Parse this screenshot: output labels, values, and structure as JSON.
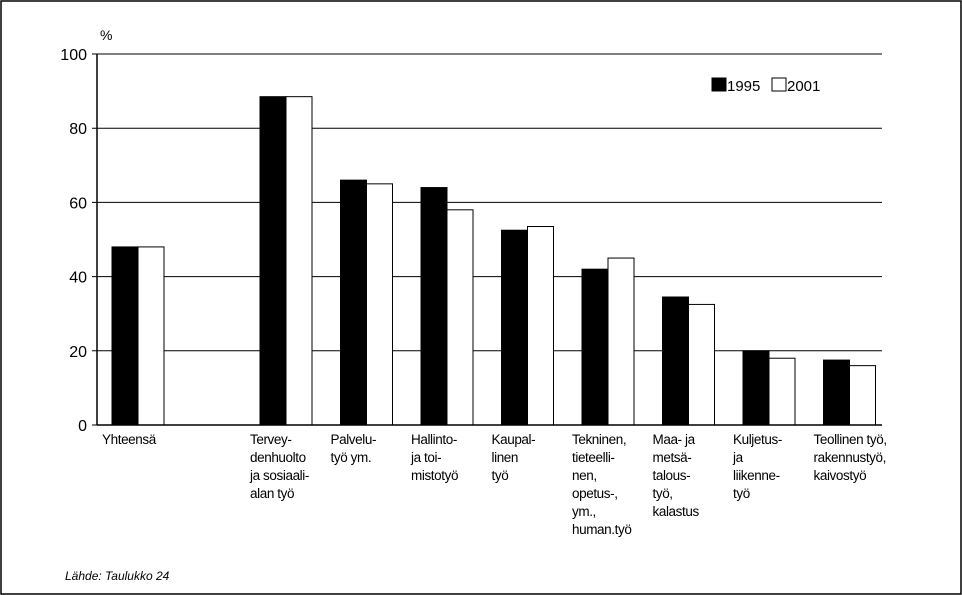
{
  "chart_data": {
    "type": "bar",
    "y_label": "%",
    "source": "Lähde: Taulukko 24",
    "categories": [
      [
        "Yhteensä"
      ],
      [
        "Tervey-",
        "denhuolto",
        "ja sosiaali-",
        "alan työ"
      ],
      [
        "Palvelu-",
        "työ ym."
      ],
      [
        "Hallinto-",
        "ja toi-",
        "mistotyö"
      ],
      [
        "Kaupal-",
        "linen",
        "työ"
      ],
      [
        "Tekninen,",
        "tieteelli-",
        "nen,",
        "opetus-,",
        "ym.,",
        "human.työ"
      ],
      [
        "Maa- ja",
        "metsä-",
        "talous-",
        "työ,",
        "kalastus"
      ],
      [
        "Kuljetus-",
        "ja",
        "liikenne-",
        "työ"
      ],
      [
        "Teollinen työ,",
        "rakennustyö,",
        "kaivostyö"
      ]
    ],
    "series": [
      {
        "name": "1995",
        "color": "#000000",
        "values": [
          48,
          88.5,
          66,
          64,
          52.5,
          42,
          34.5,
          20,
          17.5
        ]
      },
      {
        "name": "2001",
        "color": "#ffffff",
        "values": [
          48,
          88.5,
          65,
          58,
          53.5,
          45,
          32.5,
          18,
          16
        ]
      }
    ],
    "ylim": [
      0,
      100
    ],
    "yticks": [
      0,
      20,
      40,
      60,
      80,
      100
    ],
    "grid": true,
    "legend": "upper right"
  }
}
